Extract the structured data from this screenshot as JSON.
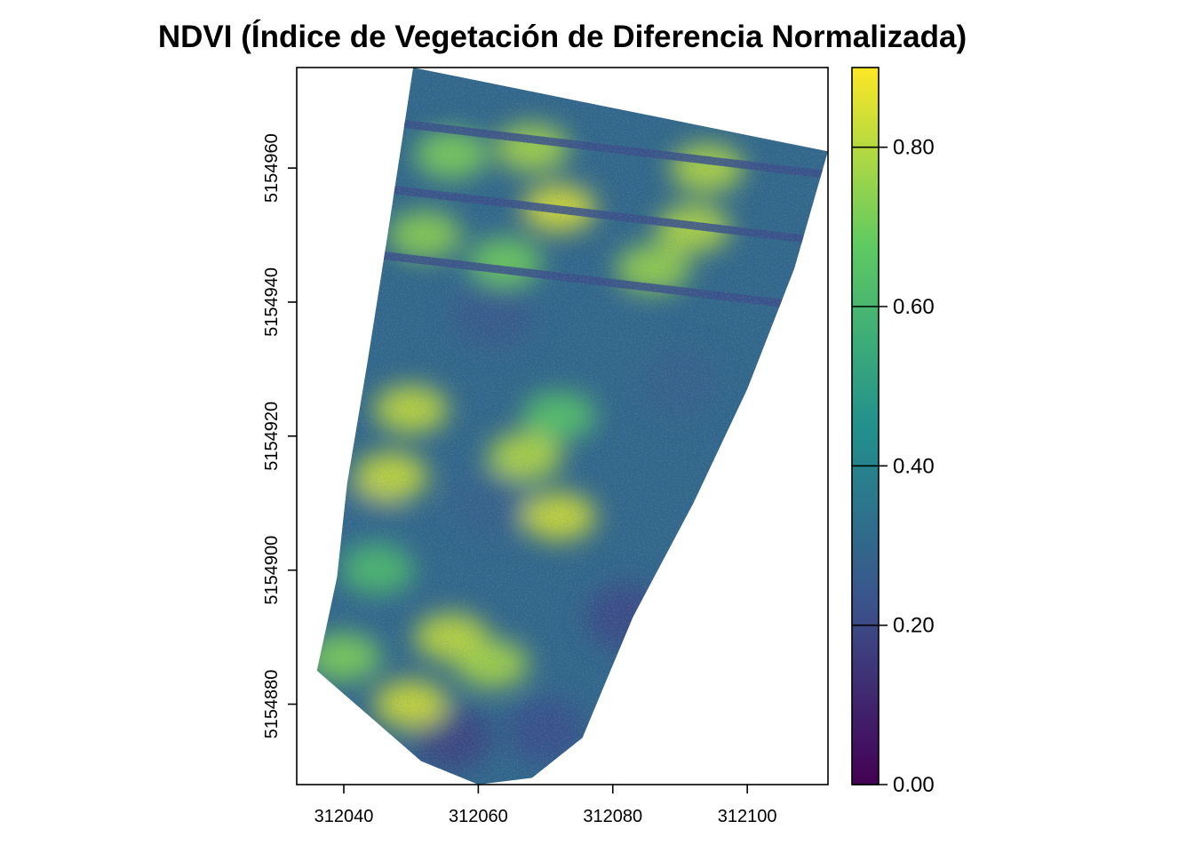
{
  "chart_data": {
    "type": "heatmap",
    "title": "NDVI (Índice de Vegetación de Diferencia Normalizada)",
    "xlabel": "",
    "ylabel": "",
    "xlim": [
      312033,
      312112
    ],
    "ylim": [
      5154868,
      5154975
    ],
    "x_ticks": [
      312040,
      312060,
      312080,
      312100
    ],
    "y_ticks": [
      5154880,
      5154900,
      5154920,
      5154940,
      5154960
    ],
    "legend": {
      "placement": "right",
      "range": [
        0.0,
        0.9
      ],
      "ticks": [
        0.0,
        0.2,
        0.4,
        0.6,
        0.8
      ],
      "tick_labels": [
        "0.00",
        "0.20",
        "0.40",
        "0.60",
        "0.80"
      ],
      "colormap": "viridis",
      "colors": [
        "#440154",
        "#3b528b",
        "#21918c",
        "#5ec962",
        "#fde725"
      ]
    },
    "field_outline": [
      [
        312050.3,
        5154975.0
      ],
      [
        312112.0,
        5154962.5
      ],
      [
        312107.0,
        5154945.0
      ],
      [
        312100.0,
        5154927.0
      ],
      [
        312092.0,
        5154910.0
      ],
      [
        312083.0,
        5154893.0
      ],
      [
        312075.5,
        5154875.0
      ],
      [
        312068.0,
        5154869.0
      ],
      [
        312060.0,
        5154868.0
      ],
      [
        312051.5,
        5154871.5
      ],
      [
        312036.0,
        5154885.0
      ],
      [
        312039.0,
        5154899.0
      ],
      [
        312040.5,
        5154913.0
      ],
      [
        312043.5,
        5154931.0
      ],
      [
        312046.5,
        5154950.0
      ]
    ],
    "vegetation_patches": [
      {
        "x": 312068,
        "y": 5154963,
        "value": 0.78
      },
      {
        "x": 312094,
        "y": 5154960,
        "value": 0.8
      },
      {
        "x": 312056,
        "y": 5154962,
        "value": 0.72
      },
      {
        "x": 312072,
        "y": 5154954,
        "value": 0.85
      },
      {
        "x": 312052,
        "y": 5154950,
        "value": 0.74
      },
      {
        "x": 312092,
        "y": 5154951,
        "value": 0.8
      },
      {
        "x": 312064,
        "y": 5154946,
        "value": 0.7
      },
      {
        "x": 312086,
        "y": 5154945,
        "value": 0.76
      },
      {
        "x": 312050,
        "y": 5154924,
        "value": 0.82
      },
      {
        "x": 312072,
        "y": 5154923,
        "value": 0.65
      },
      {
        "x": 312047,
        "y": 5154914,
        "value": 0.83
      },
      {
        "x": 312067,
        "y": 5154917,
        "value": 0.8
      },
      {
        "x": 312072,
        "y": 5154908,
        "value": 0.84
      },
      {
        "x": 312045,
        "y": 5154900,
        "value": 0.62
      },
      {
        "x": 312056,
        "y": 5154890,
        "value": 0.82
      },
      {
        "x": 312050,
        "y": 5154880,
        "value": 0.84
      },
      {
        "x": 312062,
        "y": 5154886,
        "value": 0.78
      },
      {
        "x": 312040,
        "y": 5154887,
        "value": 0.72
      }
    ],
    "low_patches": [
      {
        "x": 312090,
        "y": 5154928,
        "value": 0.28
      },
      {
        "x": 312080,
        "y": 5154934,
        "value": 0.3
      },
      {
        "x": 312062,
        "y": 5154938,
        "value": 0.25
      },
      {
        "x": 312062,
        "y": 5154910,
        "value": 0.28
      },
      {
        "x": 312043,
        "y": 5154908,
        "value": 0.3
      },
      {
        "x": 312082,
        "y": 5154893,
        "value": 0.2
      },
      {
        "x": 312056,
        "y": 5154875,
        "value": 0.18
      },
      {
        "x": 312070,
        "y": 5154876,
        "value": 0.22
      }
    ],
    "row_lines_y": [
      5154967,
      5154957,
      5154947
    ]
  }
}
